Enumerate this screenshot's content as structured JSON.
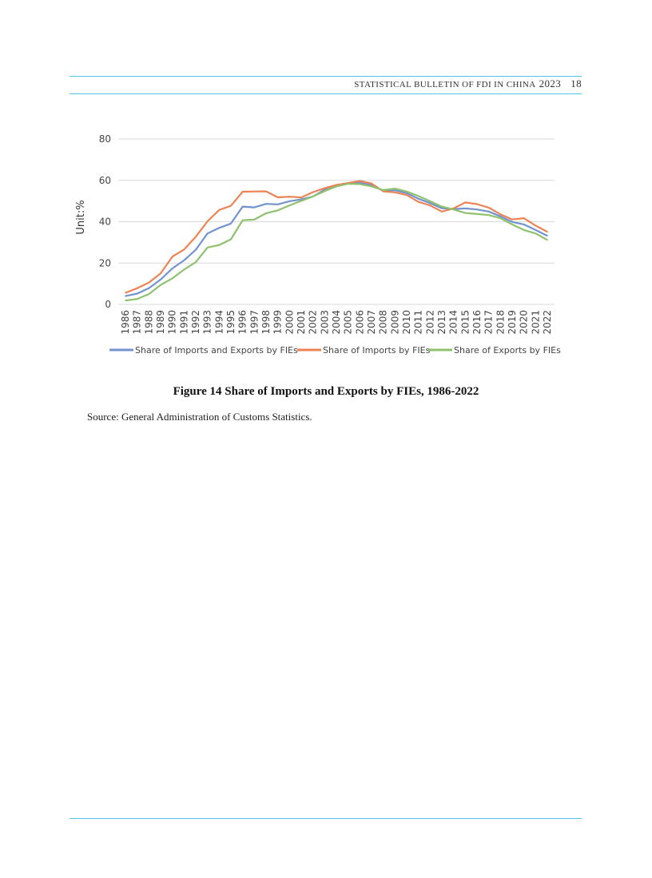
{
  "header": {
    "title": "STATISTICAL BULLETIN OF FDI IN CHINA",
    "year": "2023",
    "page_number": "18"
  },
  "caption": "Figure 14   Share of Imports and Exports by FIEs, 1986-2022",
  "source": "Source: General Administration of Customs Statistics.",
  "colors": {
    "rule": "#4fc3e8",
    "series_total": "#7393cf",
    "series_imports": "#ec8354",
    "series_exports": "#8fc16f",
    "grid": "#d9d9d9"
  },
  "chart_data": {
    "type": "line",
    "ylabel": "Unit:%",
    "xlabel": "",
    "ylim": [
      0,
      80
    ],
    "yticks": [
      0,
      20,
      40,
      60,
      80
    ],
    "grid": true,
    "legend_position": "bottom",
    "x": [
      "1986",
      "1987",
      "1988",
      "1989",
      "1990",
      "1991",
      "1992",
      "1993",
      "1994",
      "1995",
      "1996",
      "1997",
      "1998",
      "1999",
      "2000",
      "2001",
      "2002",
      "2003",
      "2004",
      "2005",
      "2006",
      "2007",
      "2008",
      "2009",
      "2010",
      "2011",
      "2012",
      "2013",
      "2014",
      "2015",
      "2016",
      "2017",
      "2018",
      "2019",
      "2020",
      "2021",
      "2022"
    ],
    "series": [
      {
        "name": "Share of Imports and Exports by FIEs",
        "color": "#7393cf",
        "values": [
          4.0,
          5.2,
          7.8,
          12.0,
          17.4,
          21.3,
          26.4,
          34.3,
          37.0,
          39.1,
          47.3,
          46.9,
          48.6,
          48.4,
          49.9,
          50.8,
          52.2,
          55.5,
          57.4,
          58.5,
          58.9,
          57.7,
          55.0,
          55.2,
          53.8,
          51.1,
          49.0,
          46.5,
          46.1,
          46.4,
          45.9,
          44.9,
          42.6,
          39.9,
          38.7,
          36.0,
          33.2
        ]
      },
      {
        "name": "Share of Imports by FIEs",
        "color": "#ec8354",
        "values": [
          5.6,
          7.8,
          10.5,
          15.0,
          23.1,
          26.5,
          32.7,
          40.2,
          45.7,
          47.7,
          54.5,
          54.6,
          54.7,
          51.8,
          52.1,
          51.7,
          54.3,
          56.2,
          57.8,
          58.7,
          59.7,
          58.5,
          54.7,
          54.2,
          52.9,
          49.6,
          47.9,
          44.9,
          46.4,
          49.3,
          48.5,
          46.8,
          43.6,
          41.1,
          41.7,
          38.1,
          35.1
        ]
      },
      {
        "name": "Share of Exports by FIEs",
        "color": "#8fc16f",
        "values": [
          1.9,
          2.6,
          5.0,
          9.4,
          12.6,
          16.8,
          20.4,
          27.5,
          28.7,
          31.5,
          40.7,
          41.0,
          44.1,
          45.5,
          47.9,
          50.1,
          52.2,
          54.8,
          57.1,
          58.3,
          58.2,
          57.1,
          55.3,
          56.0,
          54.6,
          52.4,
          49.9,
          47.3,
          45.9,
          44.2,
          43.7,
          43.2,
          41.7,
          38.7,
          36.0,
          34.3,
          31.2
        ]
      }
    ]
  }
}
